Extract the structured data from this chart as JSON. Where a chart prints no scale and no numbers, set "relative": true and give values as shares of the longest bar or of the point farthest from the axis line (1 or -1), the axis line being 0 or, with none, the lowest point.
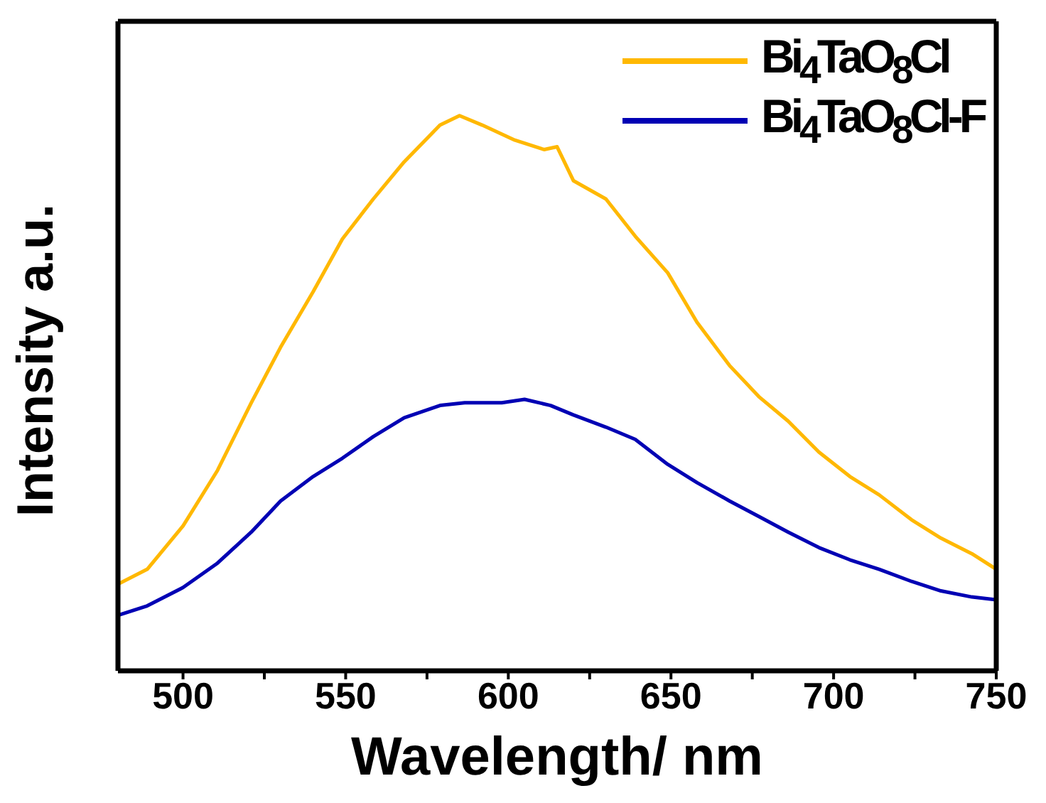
{
  "chart_data": {
    "type": "line",
    "xlabel": "Wavelength/ nm",
    "ylabel": "Intensity a.u.",
    "relative": true,
    "xlim": [
      480,
      750
    ],
    "xticks": [
      500,
      {
        "value": 525,
        "label": null
      },
      550,
      {
        "value": 575,
        "label": null
      },
      600,
      {
        "value": 625,
        "label": null
      },
      650,
      {
        "value": 675,
        "label": null
      },
      700,
      {
        "value": 725,
        "label": null
      },
      750
    ],
    "legend": "top right",
    "marker": "none",
    "line_style": "solid",
    "series": [
      {
        "name": "Bi$_{4}$TaO$_{8}$Cl",
        "color": "#ffb800",
        "x": [
          480,
          489,
          500,
          510.6,
          521,
          530,
          540,
          549,
          558.5,
          568,
          579,
          585,
          592,
          602,
          611,
          615,
          620,
          630,
          639,
          649,
          658,
          668,
          677,
          686,
          695.5,
          705,
          714,
          724,
          733,
          742.5,
          750
        ],
        "values": [
          0.156,
          0.183,
          0.261,
          0.361,
          0.483,
          0.583,
          0.683,
          0.778,
          0.85,
          0.917,
          0.983,
          1.0,
          0.983,
          0.956,
          0.939,
          0.944,
          0.883,
          0.85,
          0.783,
          0.717,
          0.628,
          0.55,
          0.494,
          0.45,
          0.394,
          0.35,
          0.317,
          0.272,
          0.239,
          0.211,
          0.183
        ]
      },
      {
        "name": "Bi$_{4}$TaO$_{8}$Cl-F",
        "color": "#0000b4",
        "x": [
          480,
          489,
          500,
          510.6,
          521,
          530,
          540,
          549,
          558.5,
          568,
          579,
          586.6,
          598,
          605,
          613,
          620,
          630,
          639,
          649,
          658,
          668,
          677,
          686,
          695.5,
          705,
          714,
          724,
          733,
          742.5,
          750
        ],
        "values": [
          0.1,
          0.117,
          0.15,
          0.194,
          0.25,
          0.306,
          0.35,
          0.383,
          0.422,
          0.456,
          0.478,
          0.483,
          0.483,
          0.489,
          0.478,
          0.461,
          0.439,
          0.417,
          0.372,
          0.339,
          0.306,
          0.278,
          0.25,
          0.222,
          0.2,
          0.183,
          0.161,
          0.144,
          0.133,
          0.128
        ]
      }
    ]
  }
}
